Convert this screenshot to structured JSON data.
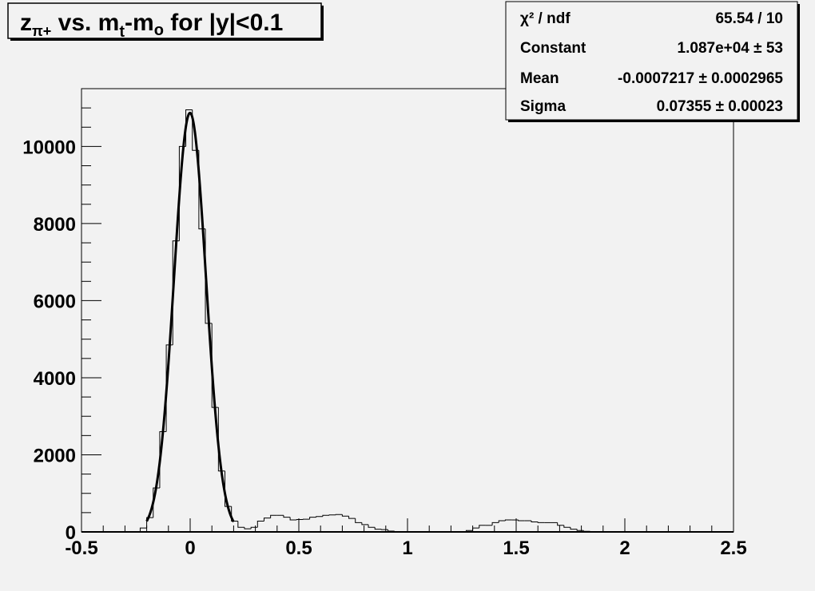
{
  "chart_data": {
    "type": "bar",
    "style": "step-histogram",
    "title": "z_{π+} vs. m_t-m_o for |y|<0.1",
    "title_parts": {
      "z": "z",
      "z_sub": "π+",
      "vs": " vs. m",
      "mt_sub": "t",
      "dash_m": "-m",
      "mo_sub": "o",
      "rest": " for |y|<0.1"
    },
    "xlabel": "",
    "ylabel": "",
    "xlim": [
      -0.5,
      2.5
    ],
    "ylim": [
      0,
      11500
    ],
    "grid": false,
    "bin_width": 0.03,
    "x_ticks": [
      "-0.5",
      "0",
      "0.5",
      "1",
      "1.5",
      "2",
      "2.5"
    ],
    "x_tick_values": [
      -0.5,
      0,
      0.5,
      1,
      1.5,
      2,
      2.5
    ],
    "y_ticks": [
      "0",
      "2000",
      "4000",
      "6000",
      "8000",
      "10000"
    ],
    "y_tick_values": [
      0,
      2000,
      4000,
      6000,
      8000,
      10000
    ],
    "values": [
      0,
      0,
      0,
      0,
      0,
      0,
      0,
      0,
      10,
      100,
      370,
      1140,
      2600,
      4850,
      7550,
      10000,
      10950,
      9900,
      7860,
      5410,
      3230,
      1580,
      660,
      280,
      120,
      80,
      120,
      280,
      360,
      430,
      430,
      380,
      310,
      320,
      330,
      380,
      400,
      430,
      440,
      450,
      410,
      350,
      240,
      190,
      120,
      70,
      60,
      20,
      0,
      0,
      0,
      0,
      0,
      0,
      0,
      0,
      0,
      0,
      0,
      35,
      100,
      170,
      170,
      240,
      290,
      310,
      310,
      290,
      290,
      260,
      240,
      240,
      240,
      170,
      120,
      70,
      35,
      15,
      10,
      0,
      0,
      0,
      0,
      0,
      0,
      0,
      0,
      0,
      0,
      0,
      0,
      0,
      0,
      0,
      0,
      0,
      0,
      0,
      0,
      0
    ],
    "fit": {
      "function": "gaus",
      "constant": 10870,
      "mean": -0.0007217,
      "sigma": 0.07355,
      "range": [
        -0.2,
        0.2
      ]
    },
    "stats_box": {
      "position": "top-right",
      "rows": [
        {
          "label": "χ² / ndf",
          "value": "65.54 / 10"
        },
        {
          "label": "Constant",
          "value": "1.087e+04 ± 53"
        },
        {
          "label": "Mean",
          "value": "-0.0007217 ± 0.0002965"
        },
        {
          "label": "Sigma",
          "value": "0.07355 ± 0.00023"
        }
      ]
    },
    "colors": {
      "background": "#f2f2f2",
      "line": "#000000"
    }
  }
}
